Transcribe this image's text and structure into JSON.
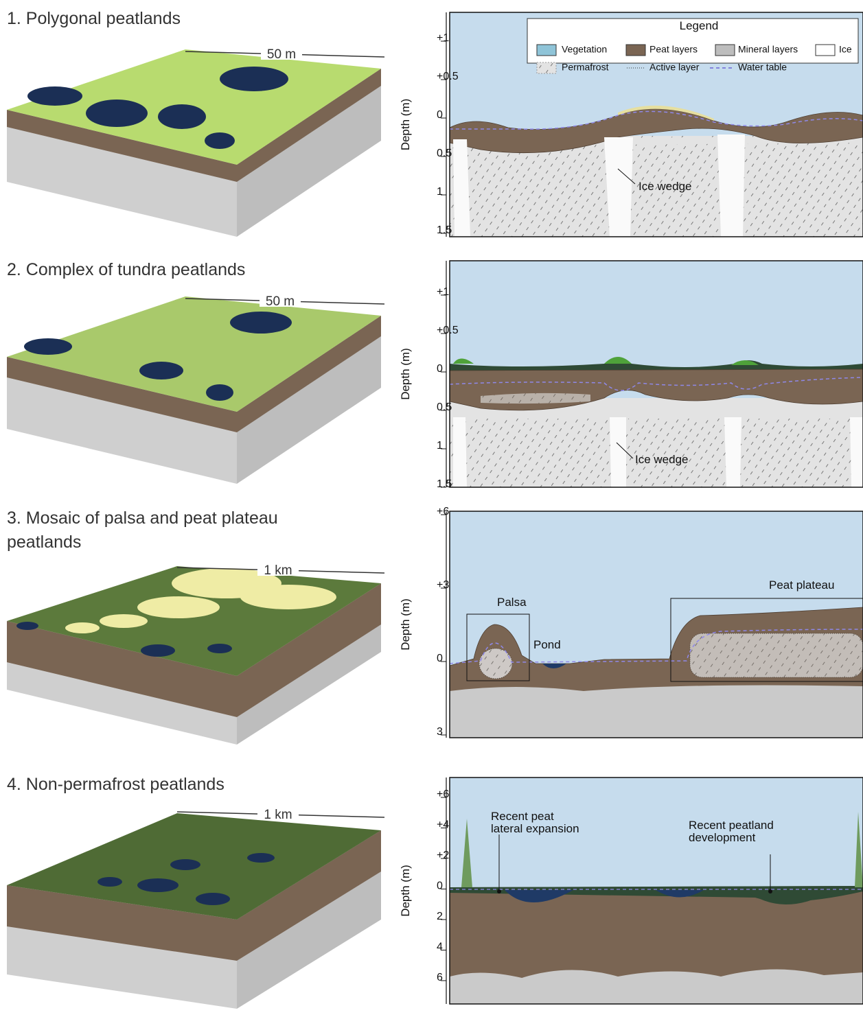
{
  "legend": {
    "title": "Legend",
    "items": [
      "Vegetation",
      "Peat layers",
      "Mineral layers",
      "Ice",
      "Permafrost",
      "Active layer",
      "Water table"
    ]
  },
  "panels": [
    {
      "title": [
        "1. Polygonal peatlands"
      ],
      "scale": "50 m",
      "axis_label": "Depth (m)",
      "ticks": [
        "+1",
        "+0.5",
        "0",
        "0.5",
        "1",
        "1.5"
      ],
      "annotations": [
        [
          "Ice wedge"
        ]
      ]
    },
    {
      "title": [
        "2. Complex of tundra peatlands"
      ],
      "scale": "50 m",
      "axis_label": "Depth (m)",
      "ticks": [
        "+1",
        "+0.5",
        "0",
        "0.5",
        "1",
        "1.5"
      ],
      "annotations": [
        [
          "Ice wedge"
        ]
      ]
    },
    {
      "title": [
        "3. Mosaic of palsa and peat plateau",
        "peatlands"
      ],
      "scale": "1 km",
      "axis_label": "Depth (m)",
      "ticks": [
        "+6",
        "+3",
        "0",
        "3"
      ],
      "annotations": [
        [
          "Palsa"
        ],
        [
          "Pond"
        ],
        [
          "Peat plateau"
        ]
      ]
    },
    {
      "title": [
        "4. Non-permafrost peatlands"
      ],
      "scale": "1 km",
      "axis_label": "Depth (m)",
      "ticks": [
        "+6",
        "+4",
        "+2",
        "0",
        "2",
        "4",
        "6"
      ],
      "annotations": [
        [
          "Recent peat",
          "lateral expansion"
        ],
        [
          "Recent peatland",
          "development"
        ]
      ]
    }
  ]
}
